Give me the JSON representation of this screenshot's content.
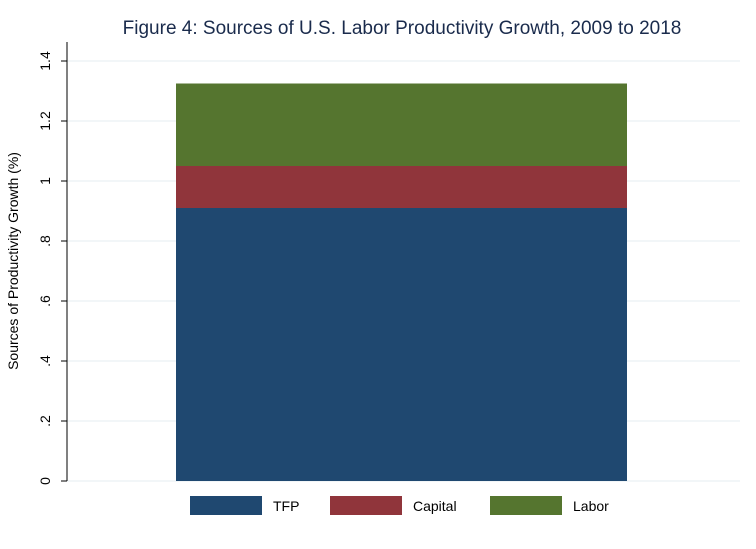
{
  "chart_data": {
    "type": "bar",
    "stacked": true,
    "title": "Figure 4: Sources of U.S. Labor Productivity Growth, 2009 to 2018",
    "xlabel": "",
    "ylabel": "Sources of Productivity Growth (%)",
    "categories": [
      ""
    ],
    "series": [
      {
        "name": "TFP",
        "values": [
          0.91
        ],
        "color": "#1f4870"
      },
      {
        "name": "Capital",
        "values": [
          0.14
        ],
        "color": "#90353b"
      },
      {
        "name": "Labor",
        "values": [
          0.275
        ],
        "color": "#55752f"
      }
    ],
    "ylim": [
      0,
      1.45
    ],
    "yticks": [
      0,
      0.2,
      0.4,
      0.6,
      0.8,
      1.0,
      1.2,
      1.4
    ],
    "ytick_labels": [
      "0",
      ".2",
      ".4",
      ".6",
      ".8",
      "1",
      "1.2",
      "1.4"
    ],
    "grid": true,
    "legend_position": "bottom"
  }
}
